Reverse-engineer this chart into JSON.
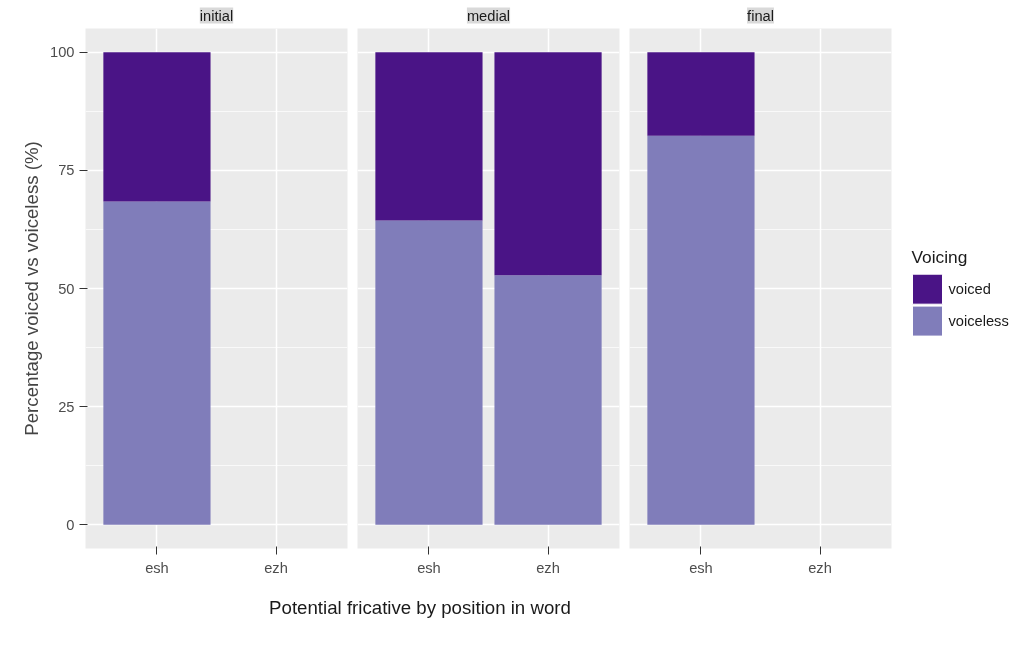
{
  "chart_data": [
    {
      "type": "bar",
      "title": "initial",
      "ylabel": "Percentage voiced vs voiceless (%)",
      "categories": [
        "esh",
        "ezh"
      ],
      "stacked": true,
      "series": [
        {
          "color": "#807dba",
          "values": [
            68.4,
            null
          ]
        },
        {
          "color": "#4a1486",
          "values": [
            31.6,
            null
          ]
        }
      ],
      "ylim": [
        -5,
        105
      ],
      "yticks": [
        0,
        25,
        50,
        75,
        100
      ],
      "grid": true,
      "legend": false
    },
    {
      "type": "bar",
      "title": "medial",
      "xlabel": "Potential fricative by position in word",
      "categories": [
        "esh",
        "ezh"
      ],
      "stacked": true,
      "series": [
        {
          "color": "#807dba",
          "values": [
            64.4,
            52.8
          ]
        },
        {
          "color": "#4a1486",
          "values": [
            35.6,
            47.2
          ]
        }
      ],
      "ylim": [
        -5,
        105
      ],
      "tick_labels": "x",
      "grid": true,
      "legend": false
    },
    {
      "type": "bar",
      "title": "final",
      "legend_title": "Voicing",
      "categories": [
        "esh",
        "ezh"
      ],
      "stacked": true,
      "series": [
        {
          "name": "voiceless",
          "color": "#807dba",
          "values": [
            82.3,
            null
          ]
        },
        {
          "name": "voiced",
          "color": "#4a1486",
          "values": [
            17.7,
            null
          ]
        }
      ],
      "ylim": [
        -5,
        105
      ],
      "tick_labels": "x",
      "grid": true,
      "legend": "right"
    }
  ]
}
